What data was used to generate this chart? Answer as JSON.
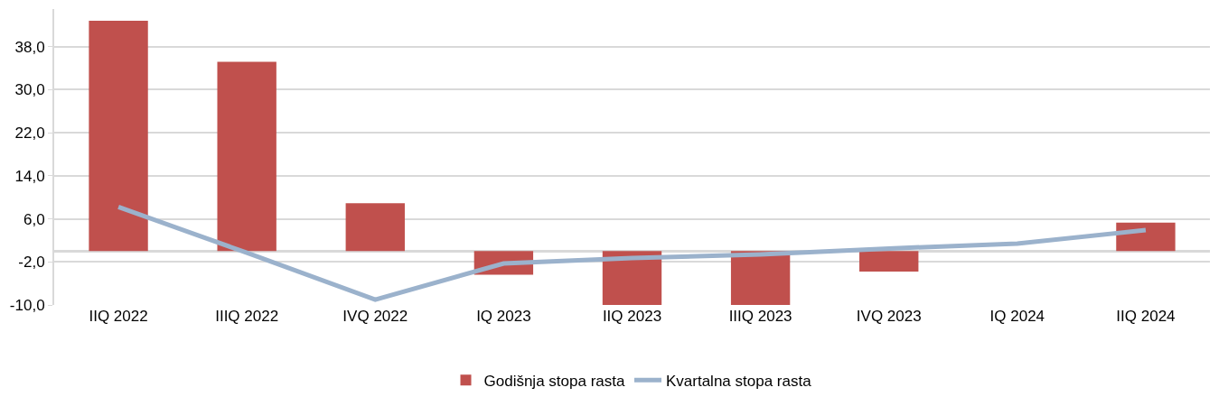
{
  "chart_data": {
    "type": "bar",
    "categories": [
      "IIQ 2022",
      "IIIQ 2022",
      "IVQ 2022",
      "IQ 2023",
      "IIQ 2023",
      "IIIQ 2023",
      "IVQ 2023",
      "IQ 2024",
      "IIQ 2024"
    ],
    "series": [
      {
        "name": "Godišnja stopa rasta",
        "color": "#c0504d",
        "values": [
          42.8,
          35.2,
          8.9,
          -4.4,
          -10.0,
          -10.0,
          -3.8,
          0.0,
          5.3
        ]
      },
      {
        "name": "Kvartalna stopa rasta",
        "type": "line",
        "color": "#9bb2cc",
        "values": [
          8.2,
          -0.3,
          -9.0,
          -2.3,
          -1.3,
          -0.6,
          0.5,
          1.4,
          3.9
        ]
      }
    ],
    "ylim": [
      -10,
      45
    ],
    "yticks": [
      {
        "value": -10,
        "label": "-10,0"
      },
      {
        "value": -2,
        "label": "-2,0"
      },
      {
        "value": 6,
        "label": "6,0"
      },
      {
        "value": 14,
        "label": "14,0"
      },
      {
        "value": 22,
        "label": "22,0"
      },
      {
        "value": 30,
        "label": "30,0"
      },
      {
        "value": 38,
        "label": "38,0"
      }
    ],
    "grid": "y",
    "legend": "bottom",
    "marker": "none"
  }
}
